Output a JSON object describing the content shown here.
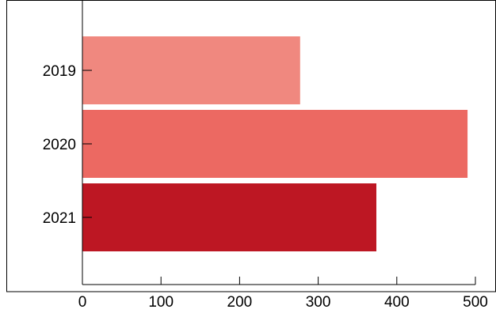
{
  "chart_data": {
    "type": "bar",
    "orientation": "horizontal",
    "categories": [
      "2019",
      "2020",
      "2021"
    ],
    "values": [
      277,
      490,
      374
    ],
    "xlim": [
      0,
      500
    ],
    "xticks": [
      0,
      100,
      200,
      300,
      400,
      500
    ],
    "title": "",
    "xlabel": "",
    "ylabel": "",
    "grid": false,
    "legend": "none",
    "colors": [
      "#f0887f",
      "#ec6962",
      "#bd1723"
    ],
    "frame_color": "#000000"
  }
}
